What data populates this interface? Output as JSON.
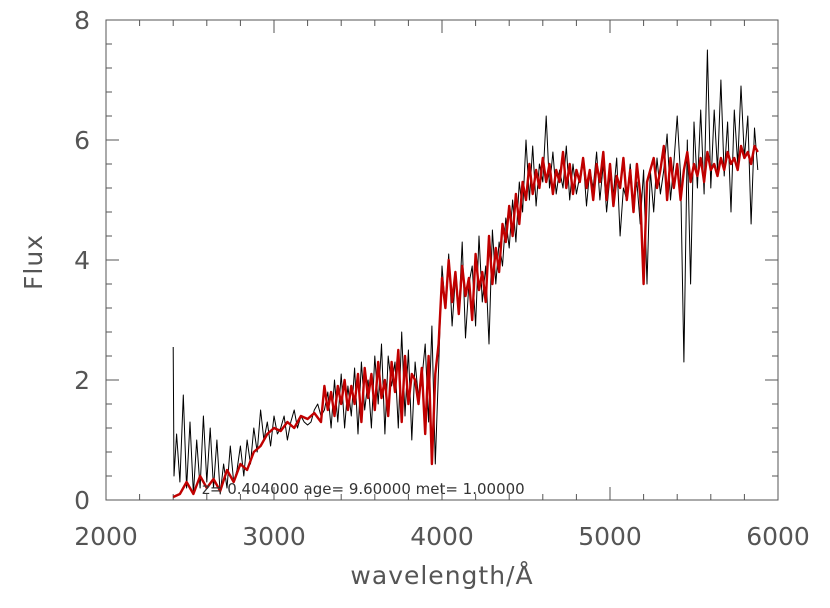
{
  "chart_data": {
    "type": "line",
    "title": "",
    "xlabel": "wavelength/Å",
    "ylabel": "Flux",
    "xlim": [
      2000,
      6000
    ],
    "ylim": [
      0,
      8
    ],
    "x_ticks": [
      2000,
      3000,
      4000,
      5000,
      6000
    ],
    "y_ticks": [
      0,
      2,
      4,
      6,
      8
    ],
    "x_minor_step": 200,
    "y_minor_step": 0.4,
    "grid": false,
    "annotation": "z=  0.404000     age=  9.60000     met=  1.00000",
    "series": [
      {
        "color": "#000000",
        "style": "thin noisy line",
        "x": [
          2400,
          2405,
          2420,
          2440,
          2460,
          2480,
          2500,
          2520,
          2540,
          2560,
          2580,
          2600,
          2620,
          2640,
          2660,
          2680,
          2700,
          2720,
          2740,
          2760,
          2780,
          2800,
          2820,
          2840,
          2860,
          2880,
          2900,
          2920,
          2940,
          2960,
          2980,
          3000,
          3020,
          3040,
          3060,
          3080,
          3100,
          3120,
          3140,
          3160,
          3180,
          3200,
          3220,
          3240,
          3260,
          3280,
          3300,
          3320,
          3340,
          3360,
          3380,
          3400,
          3420,
          3440,
          3460,
          3480,
          3500,
          3520,
          3540,
          3560,
          3580,
          3600,
          3620,
          3640,
          3660,
          3680,
          3700,
          3720,
          3740,
          3760,
          3780,
          3800,
          3820,
          3840,
          3860,
          3880,
          3900,
          3920,
          3940,
          3960,
          3980,
          4000,
          4020,
          4040,
          4060,
          4080,
          4100,
          4120,
          4140,
          4160,
          4180,
          4200,
          4220,
          4240,
          4260,
          4280,
          4300,
          4320,
          4340,
          4360,
          4380,
          4400,
          4420,
          4440,
          4460,
          4480,
          4500,
          4520,
          4540,
          4560,
          4580,
          4600,
          4620,
          4640,
          4660,
          4680,
          4700,
          4720,
          4740,
          4760,
          4780,
          4800,
          4820,
          4840,
          4860,
          4880,
          4900,
          4920,
          4940,
          4960,
          4980,
          5000,
          5020,
          5040,
          5060,
          5080,
          5100,
          5120,
          5140,
          5160,
          5180,
          5200,
          5220,
          5240,
          5260,
          5280,
          5300,
          5320,
          5340,
          5360,
          5380,
          5400,
          5420,
          5440,
          5460,
          5480,
          5500,
          5520,
          5540,
          5560,
          5580,
          5600,
          5620,
          5640,
          5660,
          5680,
          5700,
          5720,
          5740,
          5760,
          5780,
          5800,
          5820,
          5840,
          5860,
          5880
        ],
        "values": [
          2.55,
          0.4,
          1.1,
          0.3,
          1.75,
          0.2,
          1.3,
          0.1,
          1.0,
          0.2,
          1.4,
          0.3,
          1.2,
          0.2,
          1.0,
          0.1,
          0.6,
          0.2,
          0.9,
          0.3,
          0.5,
          0.9,
          0.4,
          1.0,
          0.6,
          1.2,
          0.8,
          1.5,
          1.0,
          1.3,
          0.9,
          1.4,
          1.1,
          1.2,
          1.4,
          1.0,
          1.3,
          1.5,
          1.2,
          1.4,
          1.3,
          1.25,
          1.3,
          1.5,
          1.6,
          1.4,
          1.5,
          1.8,
          1.2,
          2.0,
          1.3,
          2.1,
          1.2,
          1.9,
          1.4,
          2.2,
          1.1,
          2.3,
          1.5,
          2.0,
          1.2,
          2.4,
          1.6,
          2.6,
          1.1,
          2.4,
          1.9,
          2.3,
          1.2,
          2.8,
          1.4,
          2.5,
          1.0,
          2.3,
          1.7,
          2.0,
          2.6,
          1.3,
          2.9,
          0.6,
          2.2,
          3.9,
          3.2,
          4.1,
          2.9,
          3.7,
          3.1,
          4.3,
          2.7,
          3.6,
          3.9,
          2.9,
          4.4,
          3.3,
          3.9,
          2.6,
          4.5,
          3.6,
          4.3,
          3.9,
          4.7,
          4.2,
          5.0,
          4.3,
          5.3,
          4.8,
          6.0,
          5.0,
          5.9,
          4.9,
          5.6,
          5.3,
          6.4,
          5.2,
          5.8,
          5.1,
          5.5,
          5.2,
          5.9,
          5.0,
          5.6,
          5.1,
          5.4,
          5.7,
          4.9,
          5.5,
          5.2,
          5.8,
          5.0,
          5.6,
          4.8,
          5.4,
          5.1,
          5.7,
          4.4,
          5.2,
          5.0,
          5.6,
          4.9,
          5.3,
          4.6,
          5.5,
          3.6,
          5.5,
          4.8,
          5.7,
          5.1,
          5.5,
          6.1,
          5.0,
          5.6,
          6.4,
          5.4,
          2.3,
          6.0,
          3.6,
          6.3,
          5.2,
          6.5,
          5.1,
          7.5,
          5.2,
          6.5,
          5.5,
          7.0,
          5.4,
          6.3,
          4.8,
          6.5,
          5.6,
          6.9,
          5.7,
          6.4,
          4.6,
          6.2,
          5.5
        ]
      },
      {
        "color": "#c00000",
        "style": "thick line",
        "x": [
          2400,
          2440,
          2480,
          2520,
          2560,
          2600,
          2640,
          2680,
          2720,
          2760,
          2800,
          2840,
          2880,
          2920,
          2960,
          3000,
          3040,
          3080,
          3120,
          3160,
          3200,
          3240,
          3280,
          3300,
          3320,
          3340,
          3360,
          3380,
          3400,
          3420,
          3440,
          3460,
          3480,
          3500,
          3520,
          3540,
          3560,
          3580,
          3600,
          3620,
          3640,
          3660,
          3680,
          3700,
          3720,
          3740,
          3760,
          3780,
          3800,
          3820,
          3840,
          3860,
          3880,
          3900,
          3920,
          3940,
          3960,
          3980,
          4000,
          4020,
          4040,
          4060,
          4080,
          4100,
          4120,
          4140,
          4160,
          4180,
          4200,
          4220,
          4240,
          4260,
          4280,
          4300,
          4320,
          4340,
          4360,
          4380,
          4400,
          4420,
          4440,
          4460,
          4480,
          4500,
          4520,
          4540,
          4560,
          4580,
          4600,
          4620,
          4640,
          4660,
          4680,
          4700,
          4720,
          4740,
          4760,
          4780,
          4800,
          4820,
          4840,
          4860,
          4880,
          4900,
          4920,
          4940,
          4960,
          4980,
          5000,
          5020,
          5040,
          5060,
          5080,
          5100,
          5120,
          5140,
          5160,
          5180,
          5200,
          5220,
          5240,
          5260,
          5280,
          5300,
          5320,
          5340,
          5360,
          5380,
          5400,
          5420,
          5440,
          5460,
          5480,
          5500,
          5520,
          5540,
          5560,
          5580,
          5600,
          5620,
          5640,
          5660,
          5680,
          5700,
          5720,
          5740,
          5760,
          5780,
          5800,
          5820,
          5840,
          5860,
          5880
        ],
        "values": [
          0.05,
          0.1,
          0.3,
          0.1,
          0.4,
          0.2,
          0.35,
          0.15,
          0.5,
          0.3,
          0.6,
          0.5,
          0.8,
          0.9,
          1.1,
          1.2,
          1.15,
          1.3,
          1.2,
          1.4,
          1.35,
          1.45,
          1.3,
          1.9,
          1.5,
          1.8,
          1.4,
          1.9,
          1.6,
          2.0,
          1.5,
          1.9,
          1.6,
          2.1,
          1.3,
          2.2,
          1.7,
          2.1,
          1.5,
          2.3,
          1.7,
          2.0,
          1.4,
          2.3,
          1.8,
          2.5,
          1.3,
          2.4,
          1.6,
          2.1,
          2.0,
          1.6,
          2.2,
          1.1,
          2.4,
          0.6,
          2.1,
          2.6,
          3.7,
          3.2,
          4.0,
          3.3,
          3.8,
          3.1,
          3.9,
          3.4,
          3.7,
          3.0,
          4.1,
          3.5,
          3.8,
          3.3,
          4.4,
          3.6,
          4.2,
          3.8,
          4.6,
          4.3,
          4.9,
          4.4,
          5.1,
          4.6,
          5.3,
          5.0,
          5.6,
          5.1,
          5.5,
          5.2,
          5.7,
          5.3,
          5.6,
          5.1,
          5.5,
          5.3,
          5.8,
          5.2,
          5.6,
          5.1,
          5.5,
          5.3,
          5.7,
          5.2,
          5.5,
          5.0,
          5.6,
          5.3,
          5.8,
          5.0,
          5.6,
          4.9,
          5.4,
          5.2,
          5.7,
          5.0,
          5.5,
          4.8,
          5.6,
          5.1,
          3.6,
          5.3,
          5.5,
          5.7,
          5.2,
          5.5,
          5.9,
          5.0,
          5.7,
          5.2,
          5.6,
          5.0,
          5.5,
          5.8,
          5.3,
          5.6,
          5.4,
          5.7,
          5.3,
          5.8,
          5.5,
          5.6,
          5.4,
          5.7,
          5.5,
          5.8,
          5.6,
          5.7,
          5.5,
          5.9,
          5.7,
          5.8,
          5.6,
          5.9,
          5.8
        ]
      }
    ]
  }
}
